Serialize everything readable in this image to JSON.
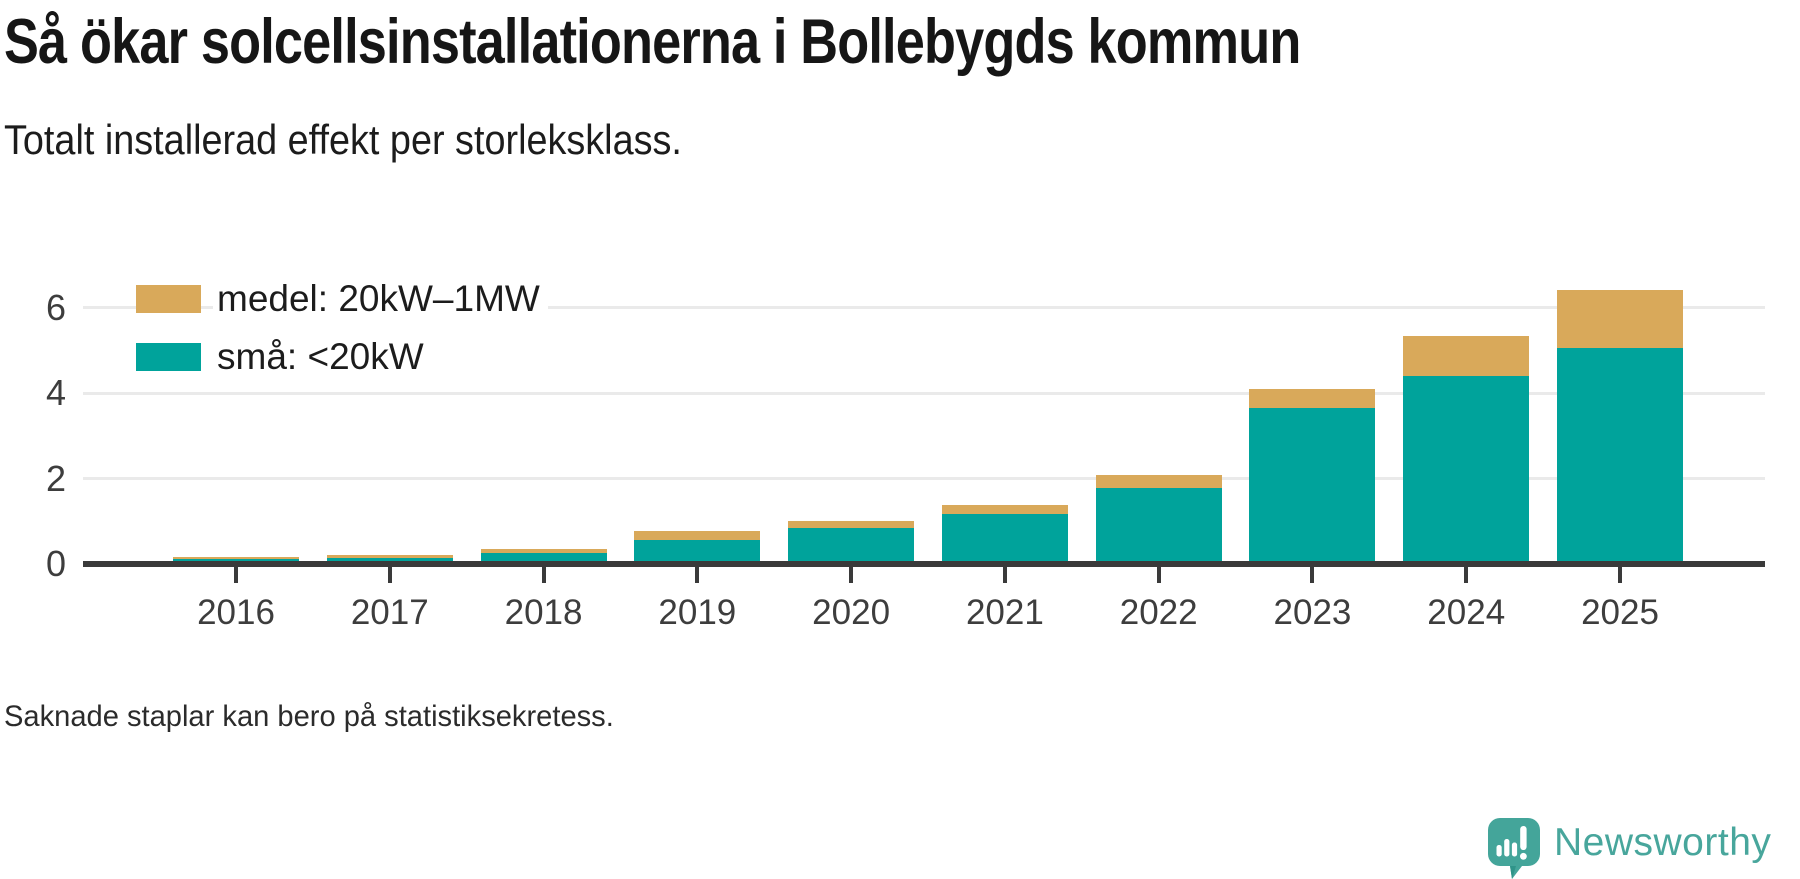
{
  "header": {
    "title": "Så ökar solcellsinstallationerna i Bollebygds kommun",
    "subtitle": "Totalt installerad effekt per storleksklass."
  },
  "chart_data": {
    "type": "bar",
    "stacked": true,
    "title": "Så ökar solcellsinstallationerna i Bollebygds kommun",
    "subtitle": "Totalt installerad effekt per storleksklass.",
    "xlabel": "",
    "ylabel": "",
    "categories": [
      "2016",
      "2017",
      "2018",
      "2019",
      "2020",
      "2021",
      "2022",
      "2023",
      "2024",
      "2025"
    ],
    "series": [
      {
        "name": "medel: 20kW–1MW",
        "color": "#d9a95a",
        "values": [
          0.04,
          0.06,
          0.09,
          0.21,
          0.17,
          0.21,
          0.31,
          0.46,
          0.94,
          1.37
        ]
      },
      {
        "name": "små: <20kW",
        "color": "#00a39b",
        "values": [
          0.12,
          0.14,
          0.26,
          0.56,
          0.84,
          1.17,
          1.78,
          3.65,
          4.41,
          5.06
        ]
      }
    ],
    "totals": [
      0.16,
      0.2,
      0.35,
      0.77,
      1.01,
      1.38,
      2.09,
      4.11,
      5.35,
      6.43
    ],
    "ylim": [
      0,
      6.5
    ],
    "yticks": [
      0,
      2,
      4,
      6
    ],
    "grid": "horizontal",
    "legend_position": "top-left"
  },
  "footer": {
    "note": "Saknade staplar kan bero på statistiksekretess."
  },
  "branding": {
    "logo_text": "Newsworthy",
    "logo_color": "#48a69c"
  },
  "colors": {
    "grid": "#eaeaea",
    "axis": "#3a3a3a",
    "small_series": "#00a39b",
    "medium_series": "#d9a95a",
    "title_text": "#161616",
    "axis_text": "#3d3d3d"
  }
}
